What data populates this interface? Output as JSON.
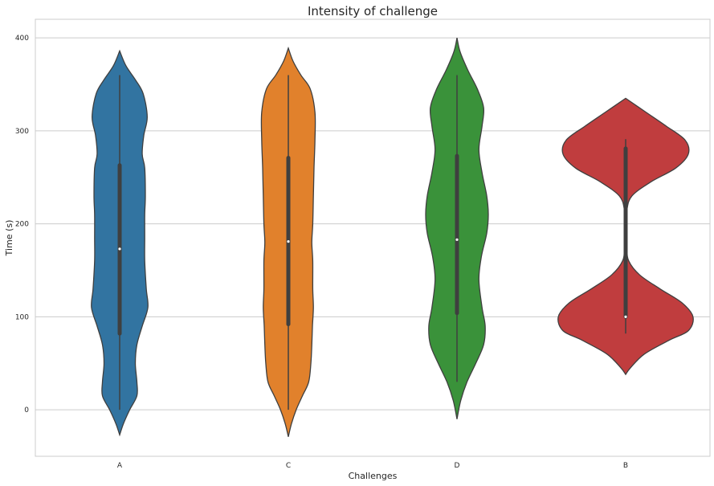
{
  "chart_data": {
    "type": "violin",
    "title": "Intensity of challenge",
    "xlabel": "Challenges",
    "ylabel": "Time (s)",
    "ylim": [
      -50,
      420
    ],
    "yticks": [
      0,
      100,
      200,
      300,
      400
    ],
    "grid": "horizontal",
    "categories": [
      "A",
      "C",
      "D",
      "B"
    ],
    "colors": [
      "#3274a1",
      "#e1812c",
      "#3a923a",
      "#c03d3e"
    ],
    "violins": [
      {
        "category": "A",
        "min": 0,
        "max": 360,
        "q1": 82,
        "median": 173,
        "q3": 263,
        "density": [
          [
            -27,
            0.0
          ],
          [
            -15,
            0.12
          ],
          [
            0,
            0.32
          ],
          [
            15,
            0.55
          ],
          [
            30,
            0.55
          ],
          [
            50,
            0.5
          ],
          [
            70,
            0.55
          ],
          [
            90,
            0.72
          ],
          [
            110,
            0.9
          ],
          [
            130,
            0.85
          ],
          [
            160,
            0.8
          ],
          [
            185,
            0.8
          ],
          [
            210,
            0.8
          ],
          [
            230,
            0.82
          ],
          [
            260,
            0.8
          ],
          [
            275,
            0.72
          ],
          [
            295,
            0.77
          ],
          [
            315,
            0.88
          ],
          [
            340,
            0.75
          ],
          [
            355,
            0.5
          ],
          [
            370,
            0.2
          ],
          [
            386,
            0.0
          ]
        ]
      },
      {
        "category": "C",
        "min": 0,
        "max": 360,
        "q1": 92,
        "median": 181,
        "q3": 271,
        "density": [
          [
            -29,
            0.0
          ],
          [
            -15,
            0.1
          ],
          [
            0,
            0.25
          ],
          [
            15,
            0.45
          ],
          [
            30,
            0.65
          ],
          [
            50,
            0.72
          ],
          [
            70,
            0.75
          ],
          [
            90,
            0.77
          ],
          [
            110,
            0.8
          ],
          [
            130,
            0.78
          ],
          [
            160,
            0.78
          ],
          [
            180,
            0.75
          ],
          [
            200,
            0.78
          ],
          [
            230,
            0.8
          ],
          [
            260,
            0.82
          ],
          [
            290,
            0.85
          ],
          [
            320,
            0.85
          ],
          [
            345,
            0.7
          ],
          [
            360,
            0.4
          ],
          [
            375,
            0.15
          ],
          [
            389,
            0.0
          ]
        ]
      },
      {
        "category": "D",
        "min": 30,
        "max": 360,
        "q1": 104,
        "median": 183,
        "q3": 273,
        "density": [
          [
            -10,
            0.0
          ],
          [
            10,
            0.12
          ],
          [
            30,
            0.32
          ],
          [
            50,
            0.6
          ],
          [
            70,
            0.85
          ],
          [
            90,
            0.9
          ],
          [
            110,
            0.8
          ],
          [
            140,
            0.7
          ],
          [
            165,
            0.78
          ],
          [
            190,
            0.95
          ],
          [
            210,
            1.0
          ],
          [
            230,
            0.95
          ],
          [
            255,
            0.8
          ],
          [
            280,
            0.7
          ],
          [
            305,
            0.8
          ],
          [
            325,
            0.85
          ],
          [
            345,
            0.65
          ],
          [
            365,
            0.35
          ],
          [
            385,
            0.1
          ],
          [
            400,
            0.0
          ]
        ]
      },
      {
        "category": "B",
        "min": 82,
        "max": 291,
        "q1": 100,
        "median": 100,
        "q3": 281,
        "density": [
          [
            38,
            0.0
          ],
          [
            45,
            0.15
          ],
          [
            60,
            0.6
          ],
          [
            75,
            1.4
          ],
          [
            85,
            2.0
          ],
          [
            100,
            2.15
          ],
          [
            115,
            1.8
          ],
          [
            130,
            1.1
          ],
          [
            145,
            0.45
          ],
          [
            160,
            0.1
          ],
          [
            175,
            0.04
          ],
          [
            200,
            0.03
          ],
          [
            215,
            0.04
          ],
          [
            230,
            0.2
          ],
          [
            245,
            0.8
          ],
          [
            260,
            1.6
          ],
          [
            275,
            2.0
          ],
          [
            290,
            1.9
          ],
          [
            305,
            1.3
          ],
          [
            320,
            0.65
          ],
          [
            335,
            0.0
          ]
        ]
      }
    ]
  }
}
